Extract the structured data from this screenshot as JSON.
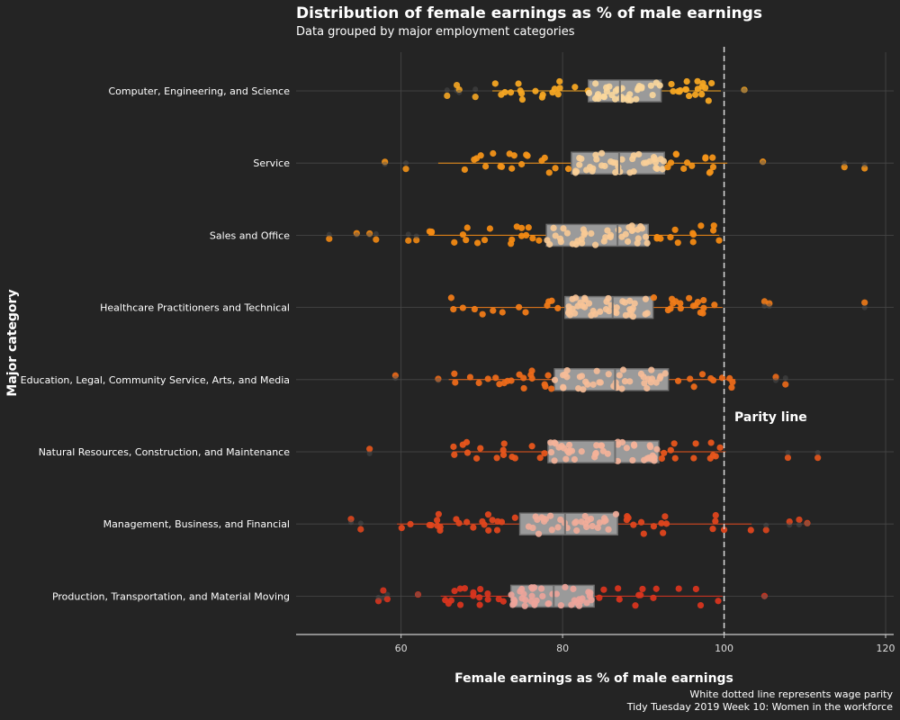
{
  "title": "Distribution of female earnings as % of male earnings",
  "subtitle": "Data grouped by major employment categories",
  "caption_line1": "White dotted line represents wage parity",
  "caption_line2": "Tidy Tuesday 2019 Week 10: Women in the workforce",
  "parity_label": "Parity line",
  "colors": {
    "background": "#242424",
    "grid": "#484848",
    "box_fill": "#9a9a9a",
    "box_stroke": "#6e6e6e"
  },
  "chart_data": {
    "type": "box-jitter",
    "title": "Distribution of female earnings as % of male earnings",
    "subtitle": "Data grouped by major employment categories",
    "xlabel": "Female earnings as % of male earnings",
    "ylabel": "Major category",
    "xlim": [
      47,
      121
    ],
    "xticks": [
      60,
      80,
      100,
      120
    ],
    "orientation": "horizontal",
    "reference_line": {
      "x": 100,
      "style": "dashed",
      "color": "#dddddd"
    },
    "grid": true,
    "legend": "none",
    "series": [
      {
        "category": "Computer, Engineering, and Science",
        "color": "#f5a623",
        "lower_whisker": 71.3,
        "q1": 83.2,
        "median": 87.1,
        "q3": 92.2,
        "upper_whisker": 99.6,
        "outliers": [
          65.7,
          66.9,
          67.2,
          69.2,
          102.5
        ]
      },
      {
        "category": "Service",
        "color": "#f39419",
        "lower_whisker": 64.6,
        "q1": 81.1,
        "median": 87.0,
        "q3": 92.6,
        "upper_whisker": 100.4,
        "outliers": [
          58.0,
          60.6,
          104.8,
          114.9,
          117.4
        ]
      },
      {
        "category": "Sales and Office",
        "color": "#f38a13",
        "lower_whisker": 63.4,
        "q1": 78.0,
        "median": 86.8,
        "q3": 90.6,
        "upper_whisker": 99.4,
        "outliers": [
          51.1,
          54.5,
          56.1,
          56.9,
          60.9,
          61.9
        ]
      },
      {
        "category": "Healthcare Practitioners and Technical",
        "color": "#f07b18",
        "lower_whisker": 66.2,
        "q1": 80.3,
        "median": 86.2,
        "q3": 91.2,
        "upper_whisker": 99.8,
        "outliers": [
          105.0,
          105.6,
          117.4
        ]
      },
      {
        "category": "Education, Legal, Community Service, Arts, and Media",
        "color": "#ec6a1a",
        "lower_whisker": 65.9,
        "q1": 79.0,
        "median": 86.5,
        "q3": 93.1,
        "upper_whisker": 101.4,
        "outliers": [
          59.3,
          64.6,
          106.4,
          107.6
        ]
      },
      {
        "category": "Natural Resources, Construction, and Maintenance",
        "color": "#e8561c",
        "lower_whisker": 66.4,
        "q1": 78.2,
        "median": 86.5,
        "q3": 91.9,
        "upper_whisker": 100.2,
        "outliers": [
          56.1,
          107.9,
          111.6
        ]
      },
      {
        "category": "Management, Business, and Financial",
        "color": "#e0461d",
        "lower_whisker": 59.5,
        "q1": 74.7,
        "median": 80.3,
        "q3": 86.8,
        "upper_whisker": 103.4,
        "outliers": [
          53.8,
          55.0,
          105.2,
          108.1,
          109.3,
          110.3
        ]
      },
      {
        "category": "Production, Transportation, and Material Moving",
        "color": "#d8351f",
        "lower_whisker": 64.9,
        "q1": 73.6,
        "median": 78.9,
        "q3": 83.9,
        "upper_whisker": 99.8,
        "outliers": [
          57.2,
          57.8,
          58.3,
          62.1,
          105.0
        ]
      }
    ]
  }
}
